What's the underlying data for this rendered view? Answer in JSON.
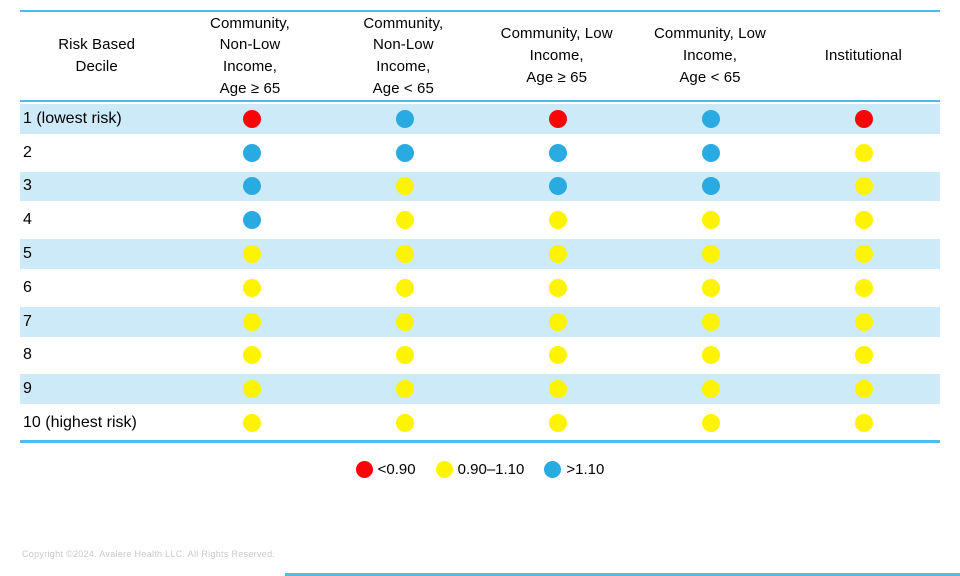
{
  "colors": {
    "red": "#F80606",
    "yellow": "#FEF400",
    "blue": "#29ABE2",
    "band": "#CDEAF8",
    "table_line": "#4FBCEA",
    "copyright_gray": "#C9C9C9"
  },
  "table": {
    "columns": [
      {
        "id": "risk-based-decile",
        "label": "Risk Based\nDecile"
      },
      {
        "id": "community-nonlow-ge65",
        "label": "Community,\nNon-Low\nIncome,\nAge ≥ 65"
      },
      {
        "id": "community-nonlow-lt65",
        "label": "Community,\nNon-Low\nIncome,\nAge < 65"
      },
      {
        "id": "community-low-ge65",
        "label": "Community, Low\nIncome,\nAge ≥ 65"
      },
      {
        "id": "community-low-lt65",
        "label": "Community, Low\nIncome,\nAge < 65"
      },
      {
        "id": "institutional",
        "label": "Institutional"
      }
    ],
    "rows": [
      {
        "label": "1 (lowest risk)",
        "cells": [
          "red",
          "blue",
          "red",
          "blue",
          "red"
        ]
      },
      {
        "label": "2",
        "cells": [
          "blue",
          "blue",
          "blue",
          "blue",
          "yellow"
        ]
      },
      {
        "label": "3",
        "cells": [
          "blue",
          "yellow",
          "blue",
          "blue",
          "yellow"
        ]
      },
      {
        "label": "4",
        "cells": [
          "blue",
          "yellow",
          "yellow",
          "yellow",
          "yellow"
        ]
      },
      {
        "label": "5",
        "cells": [
          "yellow",
          "yellow",
          "yellow",
          "yellow",
          "yellow"
        ]
      },
      {
        "label": "6",
        "cells": [
          "yellow",
          "yellow",
          "yellow",
          "yellow",
          "yellow"
        ]
      },
      {
        "label": "7",
        "cells": [
          "yellow",
          "yellow",
          "yellow",
          "yellow",
          "yellow"
        ]
      },
      {
        "label": "8",
        "cells": [
          "yellow",
          "yellow",
          "yellow",
          "yellow",
          "yellow"
        ]
      },
      {
        "label": "9",
        "cells": [
          "yellow",
          "yellow",
          "yellow",
          "yellow",
          "yellow"
        ]
      },
      {
        "label": "10 (highest risk)",
        "cells": [
          "yellow",
          "yellow",
          "yellow",
          "yellow",
          "yellow"
        ]
      }
    ]
  },
  "legend": {
    "items": [
      {
        "color": "red",
        "label": "<0.90"
      },
      {
        "color": "yellow",
        "label": "0.90–1.10"
      },
      {
        "color": "blue",
        "label": ">1.10"
      }
    ]
  },
  "footer": {
    "copyright": "Copyright ©2024. Avalere Health LLC. All Rights Reserved."
  },
  "chart_data": {
    "type": "table",
    "title": "",
    "columns": [
      "Risk Based Decile",
      "Community, Non-Low Income, Age ≥ 65",
      "Community, Non-Low Income, Age < 65",
      "Community, Low Income, Age ≥ 65",
      "Community, Low Income, Age < 65",
      "Institutional"
    ],
    "legend": [
      {
        "color": "red",
        "label": "<0.90"
      },
      {
        "color": "yellow",
        "label": "0.90–1.10"
      },
      {
        "color": "blue",
        "label": ">1.10"
      }
    ],
    "rows": [
      {
        "decile": "1 (lowest risk)",
        "values": [
          "<0.90",
          ">1.10",
          "<0.90",
          ">1.10",
          "<0.90"
        ]
      },
      {
        "decile": "2",
        "values": [
          ">1.10",
          ">1.10",
          ">1.10",
          ">1.10",
          "0.90–1.10"
        ]
      },
      {
        "decile": "3",
        "values": [
          ">1.10",
          "0.90–1.10",
          ">1.10",
          ">1.10",
          "0.90–1.10"
        ]
      },
      {
        "decile": "4",
        "values": [
          ">1.10",
          "0.90–1.10",
          "0.90–1.10",
          "0.90–1.10",
          "0.90–1.10"
        ]
      },
      {
        "decile": "5",
        "values": [
          "0.90–1.10",
          "0.90–1.10",
          "0.90–1.10",
          "0.90–1.10",
          "0.90–1.10"
        ]
      },
      {
        "decile": "6",
        "values": [
          "0.90–1.10",
          "0.90–1.10",
          "0.90–1.10",
          "0.90–1.10",
          "0.90–1.10"
        ]
      },
      {
        "decile": "7",
        "values": [
          "0.90–1.10",
          "0.90–1.10",
          "0.90–1.10",
          "0.90–1.10",
          "0.90–1.10"
        ]
      },
      {
        "decile": "8",
        "values": [
          "0.90–1.10",
          "0.90–1.10",
          "0.90–1.10",
          "0.90–1.10",
          "0.90–1.10"
        ]
      },
      {
        "decile": "9",
        "values": [
          "0.90–1.10",
          "0.90–1.10",
          "0.90–1.10",
          "0.90–1.10",
          "0.90–1.10"
        ]
      },
      {
        "decile": "10 (highest risk)",
        "values": [
          "0.90–1.10",
          "0.90–1.10",
          "0.90–1.10",
          "0.90–1.10",
          "0.90–1.10"
        ]
      }
    ]
  }
}
